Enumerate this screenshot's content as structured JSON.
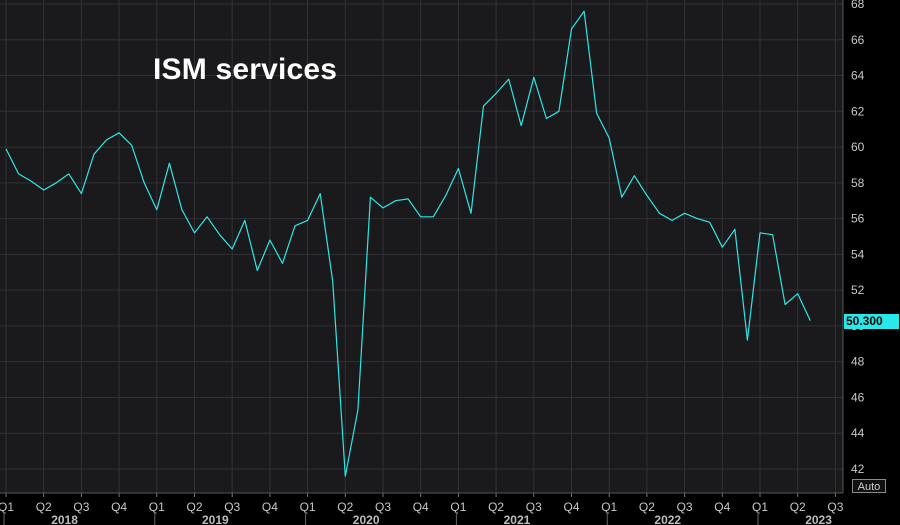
{
  "chart_data": {
    "type": "line",
    "title": "ISM services",
    "last_value_label": "50.300",
    "auto_button": "Auto",
    "ylim": [
      41,
      68
    ],
    "y_ticks": [
      42,
      44,
      46,
      48,
      50,
      52,
      54,
      56,
      58,
      60,
      62,
      64,
      66,
      68
    ],
    "quarter_ticks": [
      "Q1",
      "Q2",
      "Q3",
      "Q4",
      "Q1",
      "Q2",
      "Q3",
      "Q4",
      "Q1",
      "Q2",
      "Q3",
      "Q4",
      "Q1",
      "Q2",
      "Q3",
      "Q4",
      "Q1",
      "Q2",
      "Q3",
      "Q4",
      "Q1",
      "Q2",
      "Q3"
    ],
    "year_labels": [
      "2018",
      "2019",
      "2020",
      "2021",
      "2022",
      "2023"
    ],
    "grid": true,
    "colors": {
      "line": "#2ee6e6",
      "last_label_bg": "#27e9e9",
      "background": "#1a1a1d",
      "grid": "#323236",
      "text": "#c8c8c8"
    },
    "series": [
      {
        "x": [
          "2018-01",
          "2018-02",
          "2018-03",
          "2018-04",
          "2018-05",
          "2018-06",
          "2018-07",
          "2018-08",
          "2018-09",
          "2018-10",
          "2018-11",
          "2018-12",
          "2019-01",
          "2019-02",
          "2019-03",
          "2019-04",
          "2019-05",
          "2019-06",
          "2019-07",
          "2019-08",
          "2019-09",
          "2019-10",
          "2019-11",
          "2019-12",
          "2020-01",
          "2020-02",
          "2020-03",
          "2020-04",
          "2020-05",
          "2020-06",
          "2020-07",
          "2020-08",
          "2020-09",
          "2020-10",
          "2020-11",
          "2020-12",
          "2021-01",
          "2021-02",
          "2021-03",
          "2021-04",
          "2021-05",
          "2021-06",
          "2021-07",
          "2021-08",
          "2021-09",
          "2021-10",
          "2021-11",
          "2021-12",
          "2022-01",
          "2022-02",
          "2022-03",
          "2022-04",
          "2022-05",
          "2022-06",
          "2022-07",
          "2022-08",
          "2022-09",
          "2022-10",
          "2022-11",
          "2022-12",
          "2023-01",
          "2023-02",
          "2023-03",
          "2023-04",
          "2023-05"
        ],
        "values": [
          59.9,
          58.5,
          58.1,
          57.6,
          58.0,
          58.5,
          57.4,
          59.6,
          60.4,
          60.8,
          60.1,
          58.0,
          56.5,
          59.1,
          56.5,
          55.2,
          56.1,
          55.1,
          54.3,
          55.9,
          53.1,
          54.8,
          53.5,
          55.6,
          55.9,
          57.4,
          52.5,
          41.6,
          45.3,
          57.2,
          56.6,
          57.0,
          57.1,
          56.1,
          56.1,
          57.3,
          58.8,
          56.3,
          62.3,
          63.0,
          63.8,
          61.2,
          63.9,
          61.6,
          62.0,
          66.6,
          67.6,
          61.9,
          60.5,
          57.2,
          58.4,
          57.3,
          56.3,
          55.9,
          56.3,
          56.0,
          55.8,
          54.4,
          55.4,
          49.2,
          55.2,
          55.1,
          51.2,
          51.8,
          50.3
        ]
      }
    ]
  }
}
